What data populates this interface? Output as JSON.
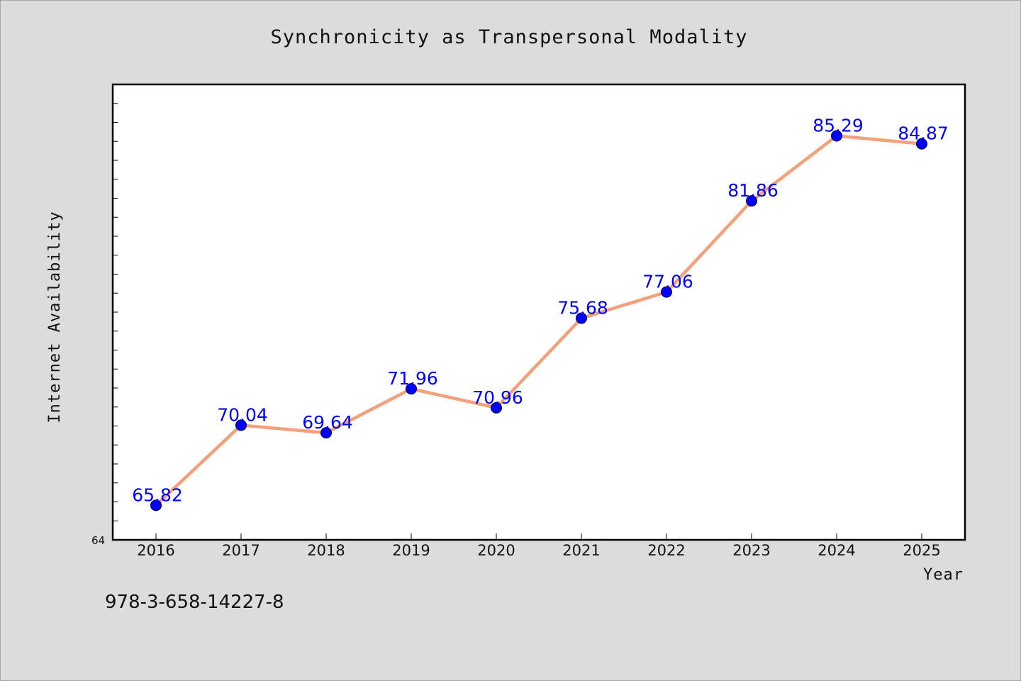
{
  "chart_data": {
    "type": "line",
    "title": "Synchronicity as Transpersonal Modality",
    "xlabel": "Year",
    "ylabel": "Internet Availability",
    "x": [
      "2016",
      "2017",
      "2018",
      "2019",
      "2020",
      "2021",
      "2022",
      "2023",
      "2024",
      "2025"
    ],
    "series": [
      {
        "values": [
          65.82,
          70.04,
          69.64,
          71.96,
          70.96,
          75.68,
          77.06,
          81.86,
          85.29,
          84.87
        ],
        "labels": [
          "65.82",
          "70.04",
          "69.64",
          "71.96",
          "70.96",
          "75.68",
          "77.06",
          "81.86",
          "85.29",
          "84.87"
        ]
      }
    ],
    "ylim": [
      64,
      88
    ],
    "y_min_label": "64",
    "line_color": "#f4a07a",
    "marker_color": "#0000ff",
    "label_color": "#0000ff",
    "grid": false
  },
  "footer": {
    "isbn": "978-3-658-14227-8"
  }
}
